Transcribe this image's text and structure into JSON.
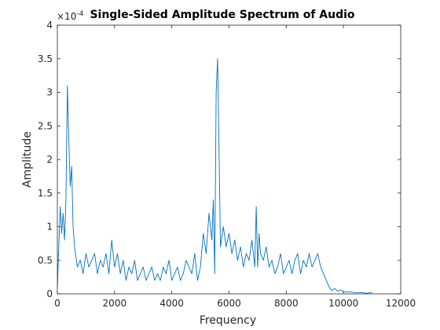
{
  "chart_data": {
    "type": "line",
    "title": "Single-Sided Amplitude Spectrum of Audio",
    "xlabel": "Frequency",
    "ylabel": "Amplitude",
    "xlim": [
      0,
      12000
    ],
    "ylim": [
      0,
      0.0004
    ],
    "y_exponent_label": "×10",
    "y_exponent_power": "-4",
    "xticks": [
      "0",
      "2000",
      "4000",
      "6000",
      "8000",
      "10000",
      "12000"
    ],
    "yticks": [
      "0",
      "0.5",
      "1",
      "1.5",
      "2",
      "2.5",
      "3",
      "3.5",
      "4"
    ],
    "grid": false,
    "line_color": "#0072BD",
    "series": [
      {
        "x": [
          0,
          100,
          150,
          200,
          250,
          300,
          350,
          400,
          450,
          500,
          550,
          600,
          700,
          800,
          900,
          1000,
          1100,
          1200,
          1300,
          1400,
          1500,
          1600,
          1700,
          1800,
          1900,
          2000,
          2100,
          2200,
          2300,
          2400,
          2500,
          2600,
          2700,
          2800,
          2900,
          3000,
          3100,
          3200,
          3300,
          3400,
          3500,
          3600,
          3700,
          3800,
          3900,
          4000,
          4100,
          4200,
          4300,
          4400,
          4500,
          4600,
          4700,
          4800,
          4900,
          5000,
          5100,
          5200,
          5300,
          5400,
          5450,
          5500,
          5550,
          5600,
          5650,
          5700,
          5800,
          5900,
          6000,
          6100,
          6200,
          6300,
          6400,
          6500,
          6600,
          6700,
          6800,
          6900,
          6950,
          7000,
          7050,
          7100,
          7200,
          7300,
          7400,
          7500,
          7600,
          7700,
          7800,
          7900,
          8000,
          8100,
          8200,
          8300,
          8400,
          8500,
          8600,
          8700,
          8800,
          8900,
          9000,
          9100,
          9200,
          9300,
          9400,
          9500,
          9600,
          9700,
          9800,
          9900,
          10000,
          10200,
          10400,
          10600,
          10800,
          11000
        ],
        "y": [
          1e-05,
          0.00013,
          9e-05,
          0.00012,
          8e-05,
          0.00014,
          0.00031,
          0.00023,
          0.00016,
          0.00019,
          0.0001,
          7e-05,
          4e-05,
          5e-05,
          3e-05,
          6e-05,
          4e-05,
          5e-05,
          6e-05,
          3e-05,
          5e-05,
          4e-05,
          6e-05,
          3e-05,
          8e-05,
          4e-05,
          6e-05,
          3e-05,
          5e-05,
          2e-05,
          4e-05,
          3e-05,
          5e-05,
          2e-05,
          3e-05,
          4e-05,
          2e-05,
          3e-05,
          4e-05,
          2e-05,
          3e-05,
          2e-05,
          4e-05,
          3e-05,
          5e-05,
          2e-05,
          3e-05,
          4e-05,
          2e-05,
          3e-05,
          5e-05,
          4e-05,
          3e-05,
          6e-05,
          2e-05,
          4e-05,
          9e-05,
          6e-05,
          0.00012,
          8e-05,
          0.00014,
          3e-05,
          0.0003,
          0.00035,
          0.00022,
          7e-05,
          0.0001,
          7e-05,
          9e-05,
          6e-05,
          8e-05,
          5e-05,
          7e-05,
          4e-05,
          6e-05,
          5e-05,
          8e-05,
          4e-05,
          0.00013,
          4e-05,
          9e-05,
          6e-05,
          5e-05,
          7e-05,
          4e-05,
          5e-05,
          3e-05,
          4e-05,
          6e-05,
          3e-05,
          4e-05,
          5e-05,
          3e-05,
          5e-05,
          6e-05,
          3e-05,
          5e-05,
          4e-05,
          6e-05,
          4e-05,
          5e-05,
          6e-05,
          4e-05,
          3e-05,
          2e-05,
          1e-05,
          5e-06,
          8e-06,
          4e-06,
          6e-06,
          3e-06,
          3e-06,
          2e-06,
          2e-06,
          1e-06,
          2e-06
        ]
      }
    ]
  }
}
